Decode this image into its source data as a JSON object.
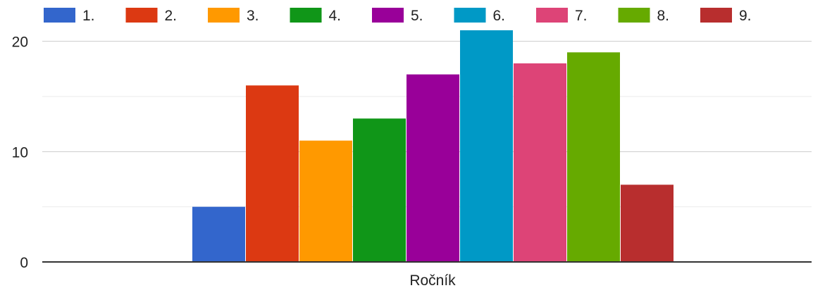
{
  "chart_data": {
    "type": "bar",
    "categories": [
      "Ročník"
    ],
    "series": [
      {
        "name": "1.",
        "values": [
          5
        ],
        "color": "#3366cc"
      },
      {
        "name": "2.",
        "values": [
          16
        ],
        "color": "#dc3912"
      },
      {
        "name": "3.",
        "values": [
          11
        ],
        "color": "#ff9900"
      },
      {
        "name": "4.",
        "values": [
          13
        ],
        "color": "#109618"
      },
      {
        "name": "5.",
        "values": [
          17
        ],
        "color": "#990099"
      },
      {
        "name": "6.",
        "values": [
          21
        ],
        "color": "#0099c6"
      },
      {
        "name": "7.",
        "values": [
          18
        ],
        "color": "#dd4477"
      },
      {
        "name": "8.",
        "values": [
          19
        ],
        "color": "#66aa00"
      },
      {
        "name": "9.",
        "values": [
          7
        ],
        "color": "#b82e2e"
      }
    ],
    "y_ticks": [
      "0",
      "10",
      "20"
    ],
    "ylim": [
      0,
      21
    ],
    "grid": true,
    "legend_position": "top"
  }
}
